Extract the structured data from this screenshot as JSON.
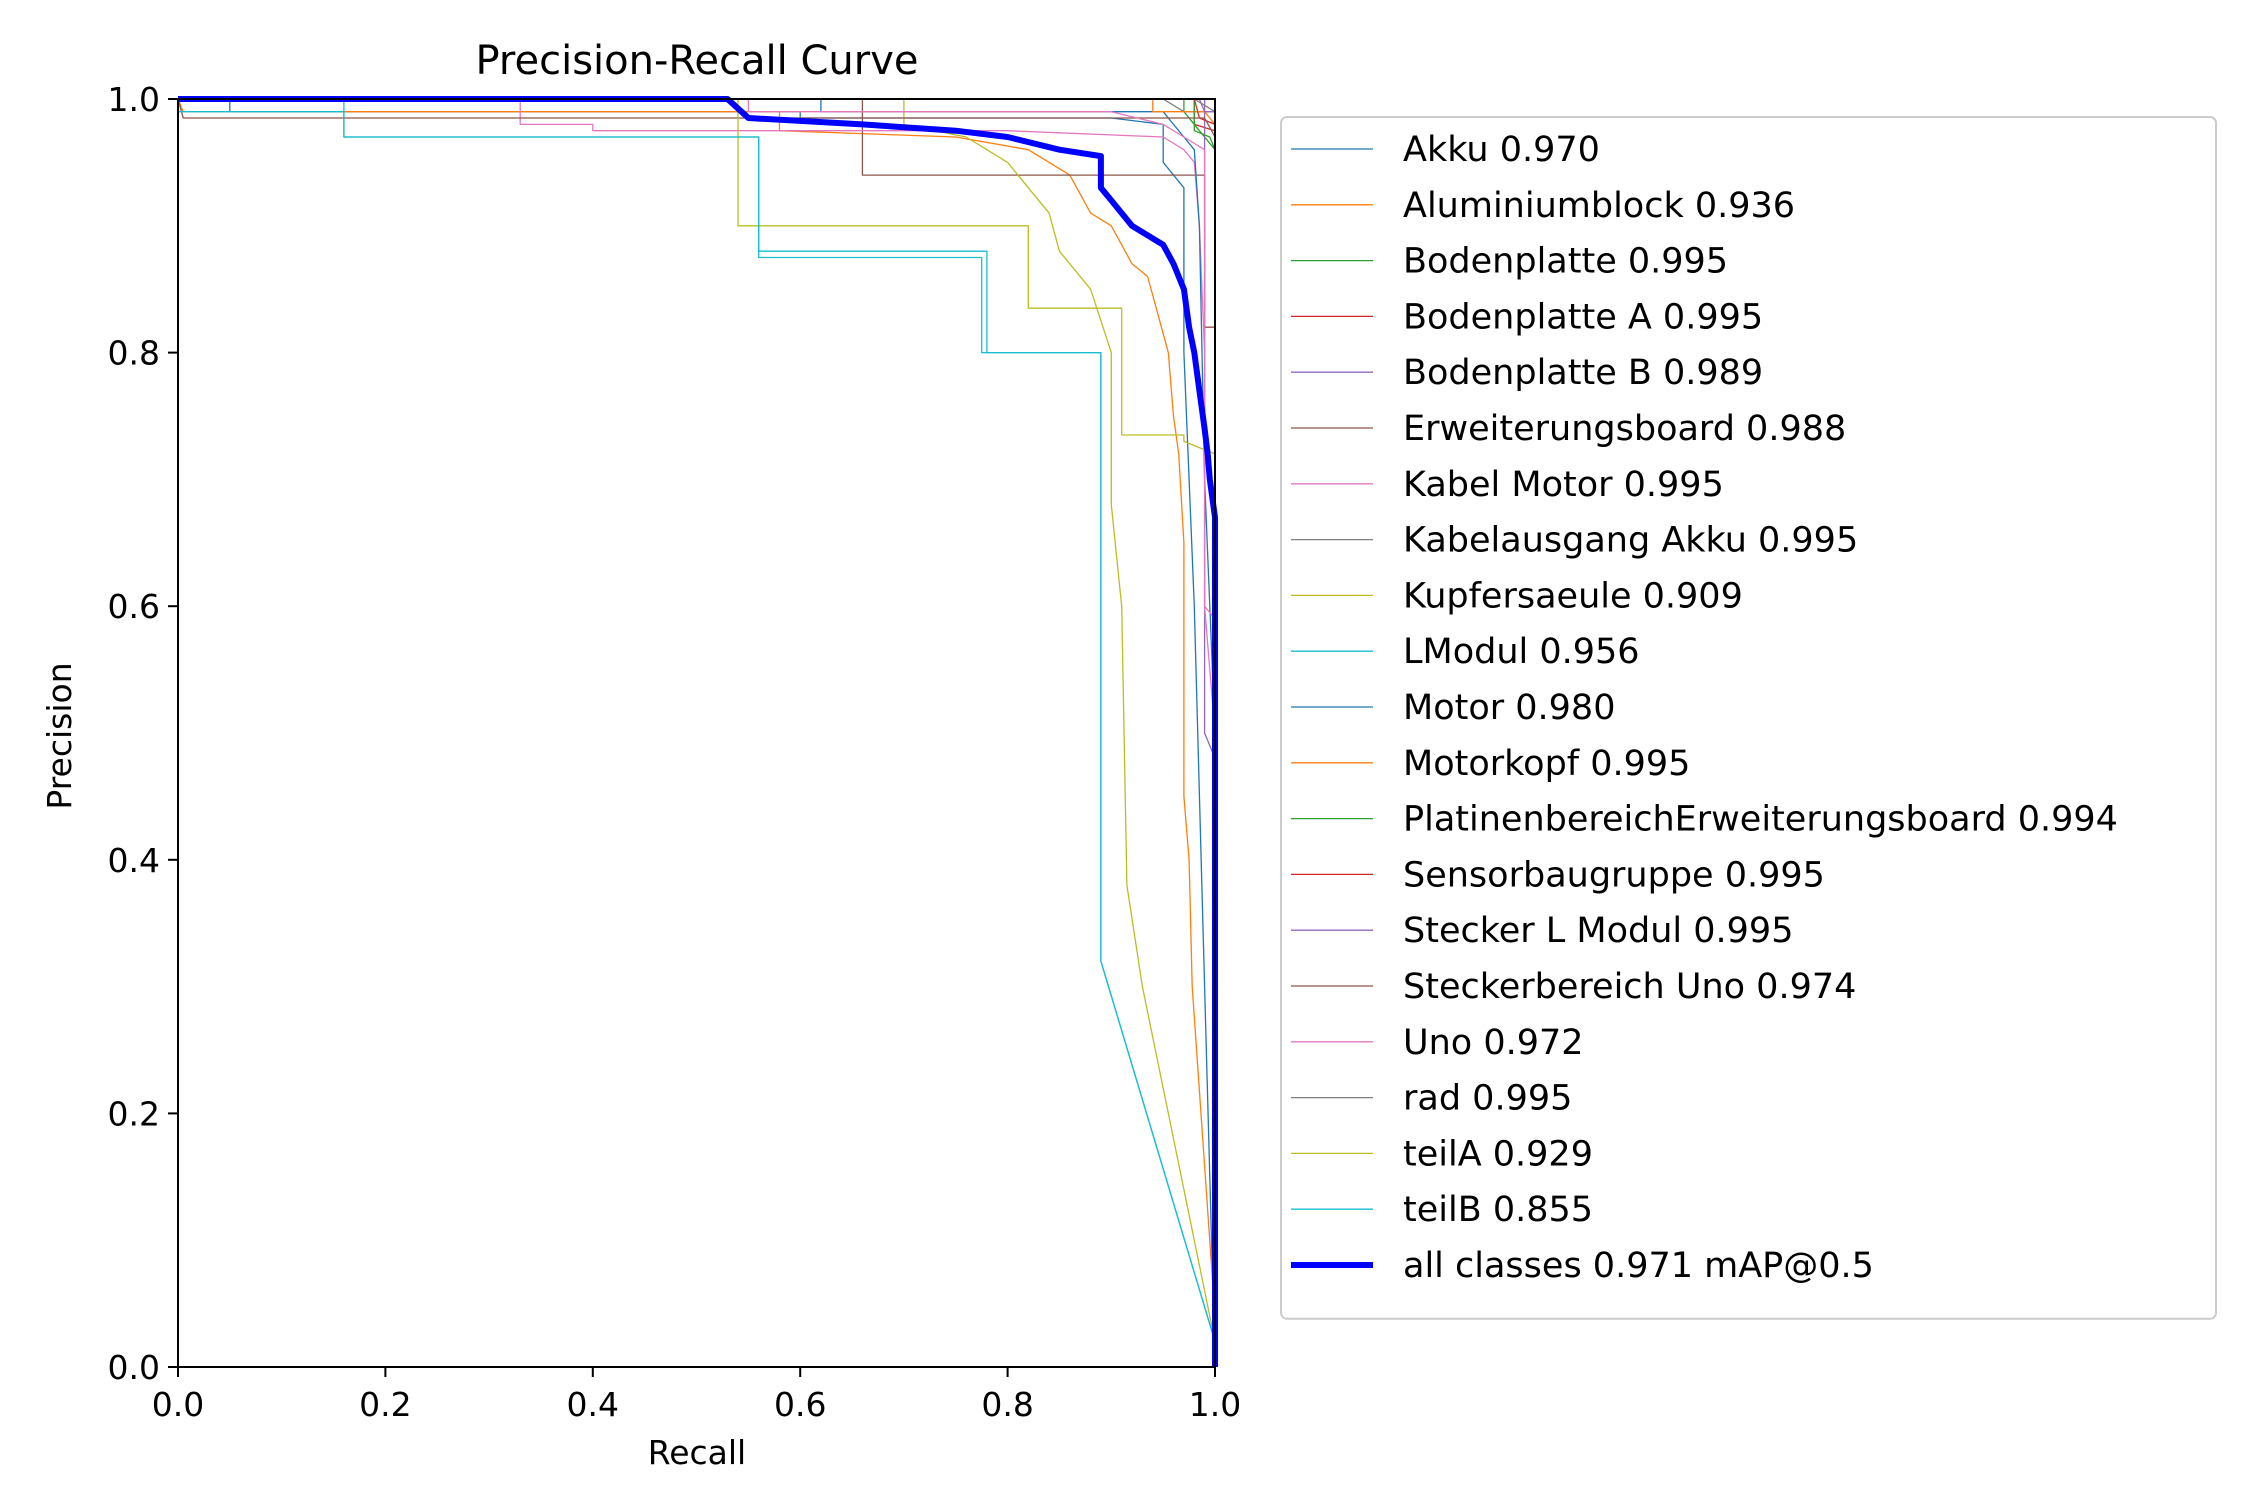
{
  "chart_data": {
    "type": "line",
    "title": "Precision-Recall Curve",
    "xlabel": "Recall",
    "ylabel": "Precision",
    "xlim": [
      0,
      1
    ],
    "ylim": [
      0,
      1
    ],
    "grid": false,
    "legend_position": "outside-right",
    "xticks": [
      "0.0",
      "0.2",
      "0.4",
      "0.6",
      "0.8",
      "1.0"
    ],
    "yticks": [
      "0.0",
      "0.2",
      "0.4",
      "0.6",
      "0.8",
      "1.0"
    ],
    "series": [
      {
        "name": "Akku 0.970",
        "color": "#1f77b4",
        "width": 1.3,
        "points": [
          [
            0,
            1
          ],
          [
            0.05,
            1
          ],
          [
            0.05,
            0.99
          ],
          [
            0.6,
            0.99
          ],
          [
            0.6,
            0.985
          ],
          [
            0.9,
            0.985
          ],
          [
            0.95,
            0.98
          ],
          [
            0.95,
            0.95
          ],
          [
            0.97,
            0.93
          ],
          [
            0.97,
            0.8
          ],
          [
            0.98,
            0.6
          ],
          [
            0.99,
            0.3
          ],
          [
            1,
            0
          ]
        ]
      },
      {
        "name": "Aluminiumblock 0.936",
        "color": "#ff7f0e",
        "width": 1.3,
        "points": [
          [
            0,
            1
          ],
          [
            0.005,
            0.99
          ],
          [
            0.58,
            0.99
          ],
          [
            0.58,
            0.975
          ],
          [
            0.75,
            0.97
          ],
          [
            0.82,
            0.96
          ],
          [
            0.86,
            0.94
          ],
          [
            0.88,
            0.91
          ],
          [
            0.9,
            0.9
          ],
          [
            0.92,
            0.87
          ],
          [
            0.935,
            0.86
          ],
          [
            0.945,
            0.83
          ],
          [
            0.955,
            0.8
          ],
          [
            0.96,
            0.75
          ],
          [
            0.965,
            0.72
          ],
          [
            0.97,
            0.65
          ],
          [
            0.97,
            0.45
          ],
          [
            0.975,
            0.4
          ],
          [
            0.978,
            0.3
          ],
          [
            1,
            0.04
          ]
        ]
      },
      {
        "name": "Bodenplatte 0.995",
        "color": "#2ca02c",
        "width": 1.3,
        "points": [
          [
            0,
            1
          ],
          [
            0.97,
            1
          ],
          [
            0.97,
            0.99
          ],
          [
            0.985,
            0.975
          ],
          [
            0.99,
            0.97
          ],
          [
            0.995,
            0.965
          ],
          [
            1,
            0.96
          ],
          [
            1,
            0
          ]
        ]
      },
      {
        "name": "Bodenplatte A 0.995",
        "color": "#d62728",
        "width": 1.3,
        "points": [
          [
            0,
            1
          ],
          [
            0.98,
            1
          ],
          [
            0.98,
            0.98
          ],
          [
            1,
            0.975
          ],
          [
            1,
            0
          ]
        ]
      },
      {
        "name": "Bodenplatte B 0.989",
        "color": "#9467bd",
        "width": 1.3,
        "points": [
          [
            0,
            1
          ],
          [
            0.99,
            1
          ],
          [
            0.99,
            0.5
          ],
          [
            1,
            0.48
          ],
          [
            1,
            0
          ]
        ]
      },
      {
        "name": "Erweiterungsboard 0.988",
        "color": "#8c564b",
        "width": 1.3,
        "points": [
          [
            0,
            1
          ],
          [
            0.66,
            1
          ],
          [
            0.66,
            0.94
          ],
          [
            0.99,
            0.94
          ],
          [
            0.99,
            0.82
          ],
          [
            1,
            0.82
          ],
          [
            1,
            0
          ]
        ]
      },
      {
        "name": "Kabel Motor 0.995",
        "color": "#e377c2",
        "width": 1.3,
        "points": [
          [
            0,
            1
          ],
          [
            0.33,
            1
          ],
          [
            0.33,
            0.98
          ],
          [
            0.4,
            0.98
          ],
          [
            0.4,
            0.975
          ],
          [
            0.8,
            0.975
          ],
          [
            0.95,
            0.97
          ],
          [
            0.97,
            0.96
          ],
          [
            0.98,
            0.95
          ],
          [
            0.985,
            0.9
          ],
          [
            0.99,
            0.8
          ],
          [
            0.99,
            0.6
          ],
          [
            0.995,
            0.55
          ],
          [
            1,
            0.5
          ],
          [
            1,
            0
          ]
        ]
      },
      {
        "name": "Kabelausgang Akku 0.995",
        "color": "#7f7f7f",
        "width": 1.3,
        "points": [
          [
            0,
            1
          ],
          [
            0.95,
            1
          ],
          [
            0.97,
            0.99
          ],
          [
            0.99,
            0.99
          ],
          [
            1,
            0.99
          ],
          [
            1,
            0
          ]
        ]
      },
      {
        "name": "Kupfersaeule 0.909",
        "color": "#bcbd22",
        "width": 1.3,
        "points": [
          [
            0,
            1
          ],
          [
            0.7,
            1
          ],
          [
            0.7,
            0.98
          ],
          [
            0.76,
            0.97
          ],
          [
            0.78,
            0.96
          ],
          [
            0.8,
            0.95
          ],
          [
            0.82,
            0.93
          ],
          [
            0.84,
            0.91
          ],
          [
            0.85,
            0.88
          ],
          [
            0.88,
            0.85
          ],
          [
            0.9,
            0.8
          ],
          [
            0.9,
            0.68
          ],
          [
            0.91,
            0.6
          ],
          [
            0.915,
            0.38
          ],
          [
            0.93,
            0.3
          ],
          [
            1,
            0.02
          ]
        ]
      },
      {
        "name": "LModul 0.956",
        "color": "#17becf",
        "width": 1.3,
        "points": [
          [
            0,
            1
          ],
          [
            0.16,
            1
          ],
          [
            0.16,
            0.97
          ],
          [
            0.56,
            0.97
          ],
          [
            0.56,
            0.88
          ],
          [
            0.78,
            0.88
          ],
          [
            0.78,
            0.8
          ],
          [
            0.89,
            0.8
          ],
          [
            0.89,
            0.32
          ],
          [
            1,
            0.02
          ]
        ]
      },
      {
        "name": "Motor 0.980",
        "color": "#1f77b4",
        "width": 1.3,
        "points": [
          [
            0,
            1
          ],
          [
            0.62,
            1
          ],
          [
            0.62,
            0.99
          ],
          [
            0.95,
            0.99
          ],
          [
            0.96,
            0.98
          ],
          [
            0.97,
            0.97
          ],
          [
            0.98,
            0.96
          ],
          [
            0.985,
            0.9
          ],
          [
            0.99,
            0.7
          ],
          [
            1,
            0.5
          ],
          [
            1,
            0
          ]
        ]
      },
      {
        "name": "Motorkopf 0.995",
        "color": "#ff7f0e",
        "width": 1.3,
        "points": [
          [
            0,
            1
          ],
          [
            0.94,
            1
          ],
          [
            0.94,
            0.99
          ],
          [
            0.99,
            0.99
          ],
          [
            1,
            0.98
          ],
          [
            1,
            0
          ]
        ]
      },
      {
        "name": "PlatinenbereichErweiterungsboard 0.994",
        "color": "#2ca02c",
        "width": 1.3,
        "points": [
          [
            0,
            1
          ],
          [
            0.98,
            1
          ],
          [
            0.98,
            0.975
          ],
          [
            0.995,
            0.97
          ],
          [
            1,
            0.96
          ],
          [
            1,
            0
          ]
        ]
      },
      {
        "name": "Sensorbaugruppe 0.995",
        "color": "#d62728",
        "width": 1.3,
        "points": [
          [
            0,
            1
          ],
          [
            0.98,
            1
          ],
          [
            0.985,
            0.985
          ],
          [
            1,
            0.98
          ],
          [
            1,
            0
          ]
        ]
      },
      {
        "name": "Stecker L Modul 0.995",
        "color": "#9467bd",
        "width": 1.3,
        "points": [
          [
            0,
            1
          ],
          [
            0.985,
            1
          ],
          [
            0.99,
            0.99
          ],
          [
            1,
            0.99
          ],
          [
            1,
            0
          ]
        ]
      },
      {
        "name": "Steckerbereich Uno 0.974",
        "color": "#8c564b",
        "width": 1.3,
        "points": [
          [
            0,
            1
          ],
          [
            0.005,
            0.985
          ],
          [
            0.66,
            0.985
          ],
          [
            0.66,
            0.985
          ],
          [
            0.99,
            0.985
          ],
          [
            1,
            0.97
          ],
          [
            1,
            0
          ]
        ]
      },
      {
        "name": "Uno 0.972",
        "color": "#e377c2",
        "width": 1.3,
        "points": [
          [
            0,
            1
          ],
          [
            0.55,
            1
          ],
          [
            0.55,
            0.99
          ],
          [
            0.9,
            0.99
          ],
          [
            0.95,
            0.98
          ],
          [
            0.97,
            0.97
          ],
          [
            0.99,
            0.96
          ],
          [
            0.99,
            0.6
          ],
          [
            1,
            0.59
          ],
          [
            1,
            0
          ]
        ]
      },
      {
        "name": "rad 0.995",
        "color": "#7f7f7f",
        "width": 1.3,
        "points": [
          [
            0,
            1
          ],
          [
            0.98,
            1
          ],
          [
            0.99,
            0.995
          ],
          [
            1,
            0.99
          ],
          [
            1,
            0
          ]
        ]
      },
      {
        "name": "teilA 0.929",
        "color": "#bcbd22",
        "width": 1.3,
        "points": [
          [
            0,
            1
          ],
          [
            0.54,
            1
          ],
          [
            0.54,
            0.9
          ],
          [
            0.82,
            0.9
          ],
          [
            0.82,
            0.835
          ],
          [
            0.91,
            0.835
          ],
          [
            0.91,
            0.735
          ],
          [
            0.97,
            0.735
          ],
          [
            0.97,
            0.73
          ],
          [
            1,
            0.72
          ],
          [
            1,
            0
          ]
        ]
      },
      {
        "name": "teilB 0.855",
        "color": "#17becf",
        "width": 1.3,
        "points": [
          [
            0,
            1
          ],
          [
            0.0,
            0.99
          ],
          [
            0.08,
            0.99
          ],
          [
            0.16,
            0.99
          ],
          [
            0.16,
            0.97
          ],
          [
            0.56,
            0.97
          ],
          [
            0.56,
            0.875
          ],
          [
            0.775,
            0.875
          ],
          [
            0.775,
            0.8
          ],
          [
            0.89,
            0.8
          ],
          [
            0.89,
            0.32
          ],
          [
            1,
            0.02
          ]
        ]
      },
      {
        "name": "all classes 0.971 mAP@0.5",
        "color": "#0000ff",
        "width": 6,
        "points": [
          [
            0,
            1
          ],
          [
            0.53,
            1
          ],
          [
            0.55,
            0.985
          ],
          [
            0.66,
            0.98
          ],
          [
            0.75,
            0.975
          ],
          [
            0.8,
            0.97
          ],
          [
            0.85,
            0.96
          ],
          [
            0.89,
            0.955
          ],
          [
            0.89,
            0.93
          ],
          [
            0.9,
            0.92
          ],
          [
            0.92,
            0.9
          ],
          [
            0.95,
            0.885
          ],
          [
            0.96,
            0.87
          ],
          [
            0.97,
            0.85
          ],
          [
            0.975,
            0.82
          ],
          [
            0.98,
            0.8
          ],
          [
            0.985,
            0.77
          ],
          [
            0.99,
            0.74
          ],
          [
            0.993,
            0.72
          ],
          [
            0.995,
            0.7
          ],
          [
            1,
            0.67
          ],
          [
            1,
            0
          ]
        ]
      }
    ]
  }
}
